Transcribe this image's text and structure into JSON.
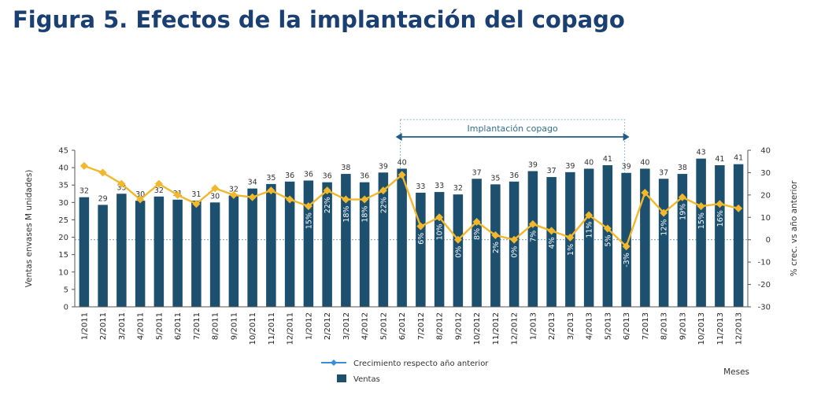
{
  "title": "Figura 5. Efectos de la implantación del copago",
  "chart_data": {
    "type": "bar+line",
    "categories": [
      "1/2011",
      "2/2011",
      "3/2011",
      "4/2011",
      "5/2011",
      "6/2011",
      "7/2011",
      "8/2011",
      "9/2011",
      "10/2011",
      "11/2011",
      "12/2011",
      "1/2012",
      "2/2012",
      "3/2012",
      "4/2012",
      "5/2012",
      "6/2012",
      "7/2012",
      "8/2012",
      "9/2012",
      "10/2012",
      "11/2012",
      "12/2012",
      "1/2013",
      "2/2013",
      "3/2013",
      "4/2013",
      "5/2013",
      "6/2013",
      "7/2013",
      "8/2013",
      "9/2013",
      "10/2013",
      "11/2013",
      "12/2013"
    ],
    "series": [
      {
        "name": "Ventas",
        "type": "bar",
        "axis": "left",
        "color": "#1d4f6e",
        "values": [
          31.5,
          29.3,
          32.5,
          30.5,
          31.7,
          30.8,
          30.5,
          30.0,
          32.0,
          34.0,
          35.3,
          36.0,
          36.3,
          35.8,
          38.2,
          35.8,
          38.6,
          39.7,
          32.8,
          33.0,
          32.3,
          36.8,
          35.2,
          36.0,
          39.0,
          37.3,
          38.7,
          39.7,
          40.7,
          38.5,
          39.7,
          36.8,
          38.2,
          42.6,
          40.7,
          41.0
        ],
        "labels": [
          "32",
          "29",
          "33",
          "30",
          "32",
          "31",
          "31",
          "30",
          "32",
          "34",
          "35",
          "36",
          "36",
          "36",
          "38",
          "36",
          "39",
          "40",
          "33",
          "33",
          "32",
          "37",
          "35",
          "36",
          "39",
          "37",
          "39",
          "40",
          "41",
          "39",
          "40",
          "37",
          "38",
          "43",
          "41",
          "41"
        ]
      },
      {
        "name": "Crecimiento respecto año anterior",
        "type": "line",
        "axis": "right",
        "color": "#f2b82c",
        "values": [
          33,
          30,
          25,
          18,
          25,
          20,
          16,
          23,
          20,
          19,
          22,
          18,
          15,
          22,
          18,
          18,
          22,
          29,
          6,
          10,
          0,
          8,
          2,
          0,
          7,
          4,
          1,
          11,
          5,
          -3,
          21,
          12,
          19,
          15,
          16,
          14
        ],
        "labels": [
          "",
          "",
          "",
          "",
          "",
          "",
          "",
          "",
          "",
          "",
          "",
          "",
          "15%",
          "22%",
          "18%",
          "18%",
          "22%",
          "",
          "6%",
          "10%",
          "0%",
          "8%",
          "2%",
          "0%",
          "7%",
          "4%",
          "1%",
          "11%",
          "5%",
          "-3%",
          "",
          "12%",
          "19%",
          "15%",
          "16%",
          ""
        ]
      }
    ],
    "left_axis": {
      "label": "Ventas envases M unidades)",
      "range": [
        0,
        45
      ],
      "ticks": [
        "0",
        "5",
        "10",
        "15",
        "20",
        "25",
        "30",
        "35",
        "40",
        "45"
      ]
    },
    "right_axis": {
      "label": "% crec. vs año anterior",
      "range": [
        -30,
        40
      ],
      "ticks": [
        "-30",
        "-20",
        "-10",
        "0",
        "10",
        "20",
        "30",
        "40"
      ]
    },
    "x_axis_label": "Meses",
    "annotation": {
      "text": "Implantación copago",
      "from": "6/2012",
      "to": "6/2013"
    },
    "legend": {
      "placement": "bottom-center",
      "line_label": "Crecimiento respecto año anterior",
      "bar_label": "Ventas"
    },
    "grid": false
  }
}
